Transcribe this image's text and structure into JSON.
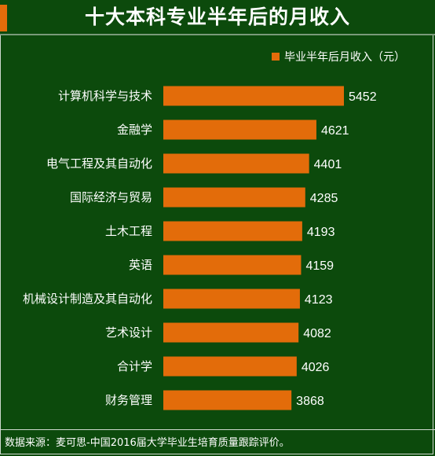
{
  "title": "十大本科专业半年后的月收入",
  "legend": {
    "label": "毕业半年后月收入（元）"
  },
  "source": "数据来源：麦可思-中国2016届大学毕业生培育质量跟踪评价。",
  "colors": {
    "background": "#0c4a0c",
    "bar": "#e36c0a",
    "text": "#ffffff"
  },
  "chart_data": {
    "type": "bar",
    "orientation": "horizontal",
    "categories": [
      "计算机科学与技术",
      "金融学",
      "电气工程及其自动化",
      "国际经济与贸易",
      "土木工程",
      "英语",
      "机械设计制造及其自动化",
      "艺术设计",
      "合计学",
      "财务管理"
    ],
    "series": [
      {
        "name": "毕业半年后月收入（元）",
        "values": [
          5452,
          4621,
          4401,
          4285,
          4193,
          4159,
          4123,
          4082,
          4026,
          3868
        ]
      }
    ],
    "data_labels": [
      "5452",
      "4621",
      "4401",
      "4285",
      "4193",
      "4159",
      "4123",
      "4082",
      "4026",
      "3868"
    ],
    "legend_position": "top-right",
    "grid": false,
    "xlim": [
      0,
      5452
    ]
  }
}
